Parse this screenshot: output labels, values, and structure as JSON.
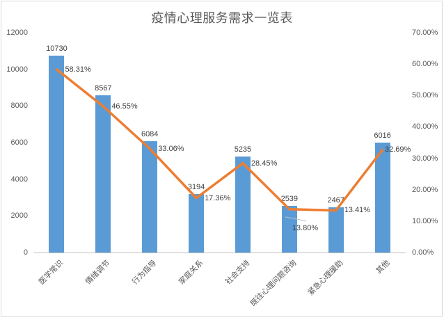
{
  "window": {
    "background": "#FFFFFF",
    "border_color": "#D9D9D9"
  },
  "chart_data": {
    "type": "bar",
    "title": "疫情心理服务需求一览表",
    "categories": [
      "医学常识",
      "情绪调节",
      "行为指导",
      "家庭关系",
      "社会支持",
      "既往心理问题咨询",
      "紧急心理援助",
      "其他"
    ],
    "series": [
      {
        "name": "demand-count-bars",
        "type": "bar",
        "axis": "left",
        "color": "#5B9BD5",
        "values": [
          10730,
          8567,
          6084,
          3194,
          5235,
          2539,
          2467,
          6016
        ],
        "data_labels": [
          "10730",
          "8567",
          "6084",
          "3194",
          "5235",
          "2539",
          "2467",
          "6016"
        ]
      },
      {
        "name": "percent-line",
        "type": "line",
        "axis": "right",
        "color": "#ED7D31",
        "values": [
          58.31,
          46.55,
          33.06,
          17.36,
          28.45,
          13.8,
          13.41,
          32.69
        ],
        "data_labels": [
          "58.31%",
          "46.55%",
          "33.06%",
          "17.36%",
          "28.45%",
          "13.80%",
          "13.41%",
          "32.69%"
        ],
        "callout_index": 5
      }
    ],
    "left_axis": {
      "min": 0,
      "max": 12000,
      "step": 2000,
      "ticks": [
        "0",
        "2000",
        "4000",
        "6000",
        "8000",
        "10000",
        "12000"
      ]
    },
    "right_axis": {
      "min": 0,
      "max": 70,
      "step": 10,
      "ticks": [
        "0.00%",
        "10.00%",
        "20.00%",
        "30.00%",
        "40.00%",
        "50.00%",
        "60.00%",
        "70.00%"
      ]
    },
    "grid": false,
    "legend": "none",
    "label_color": "#404040",
    "axis_text_color": "#595959",
    "axis_line_color": "#BFBFBF",
    "callout_line_color": "#BFBFBF"
  }
}
